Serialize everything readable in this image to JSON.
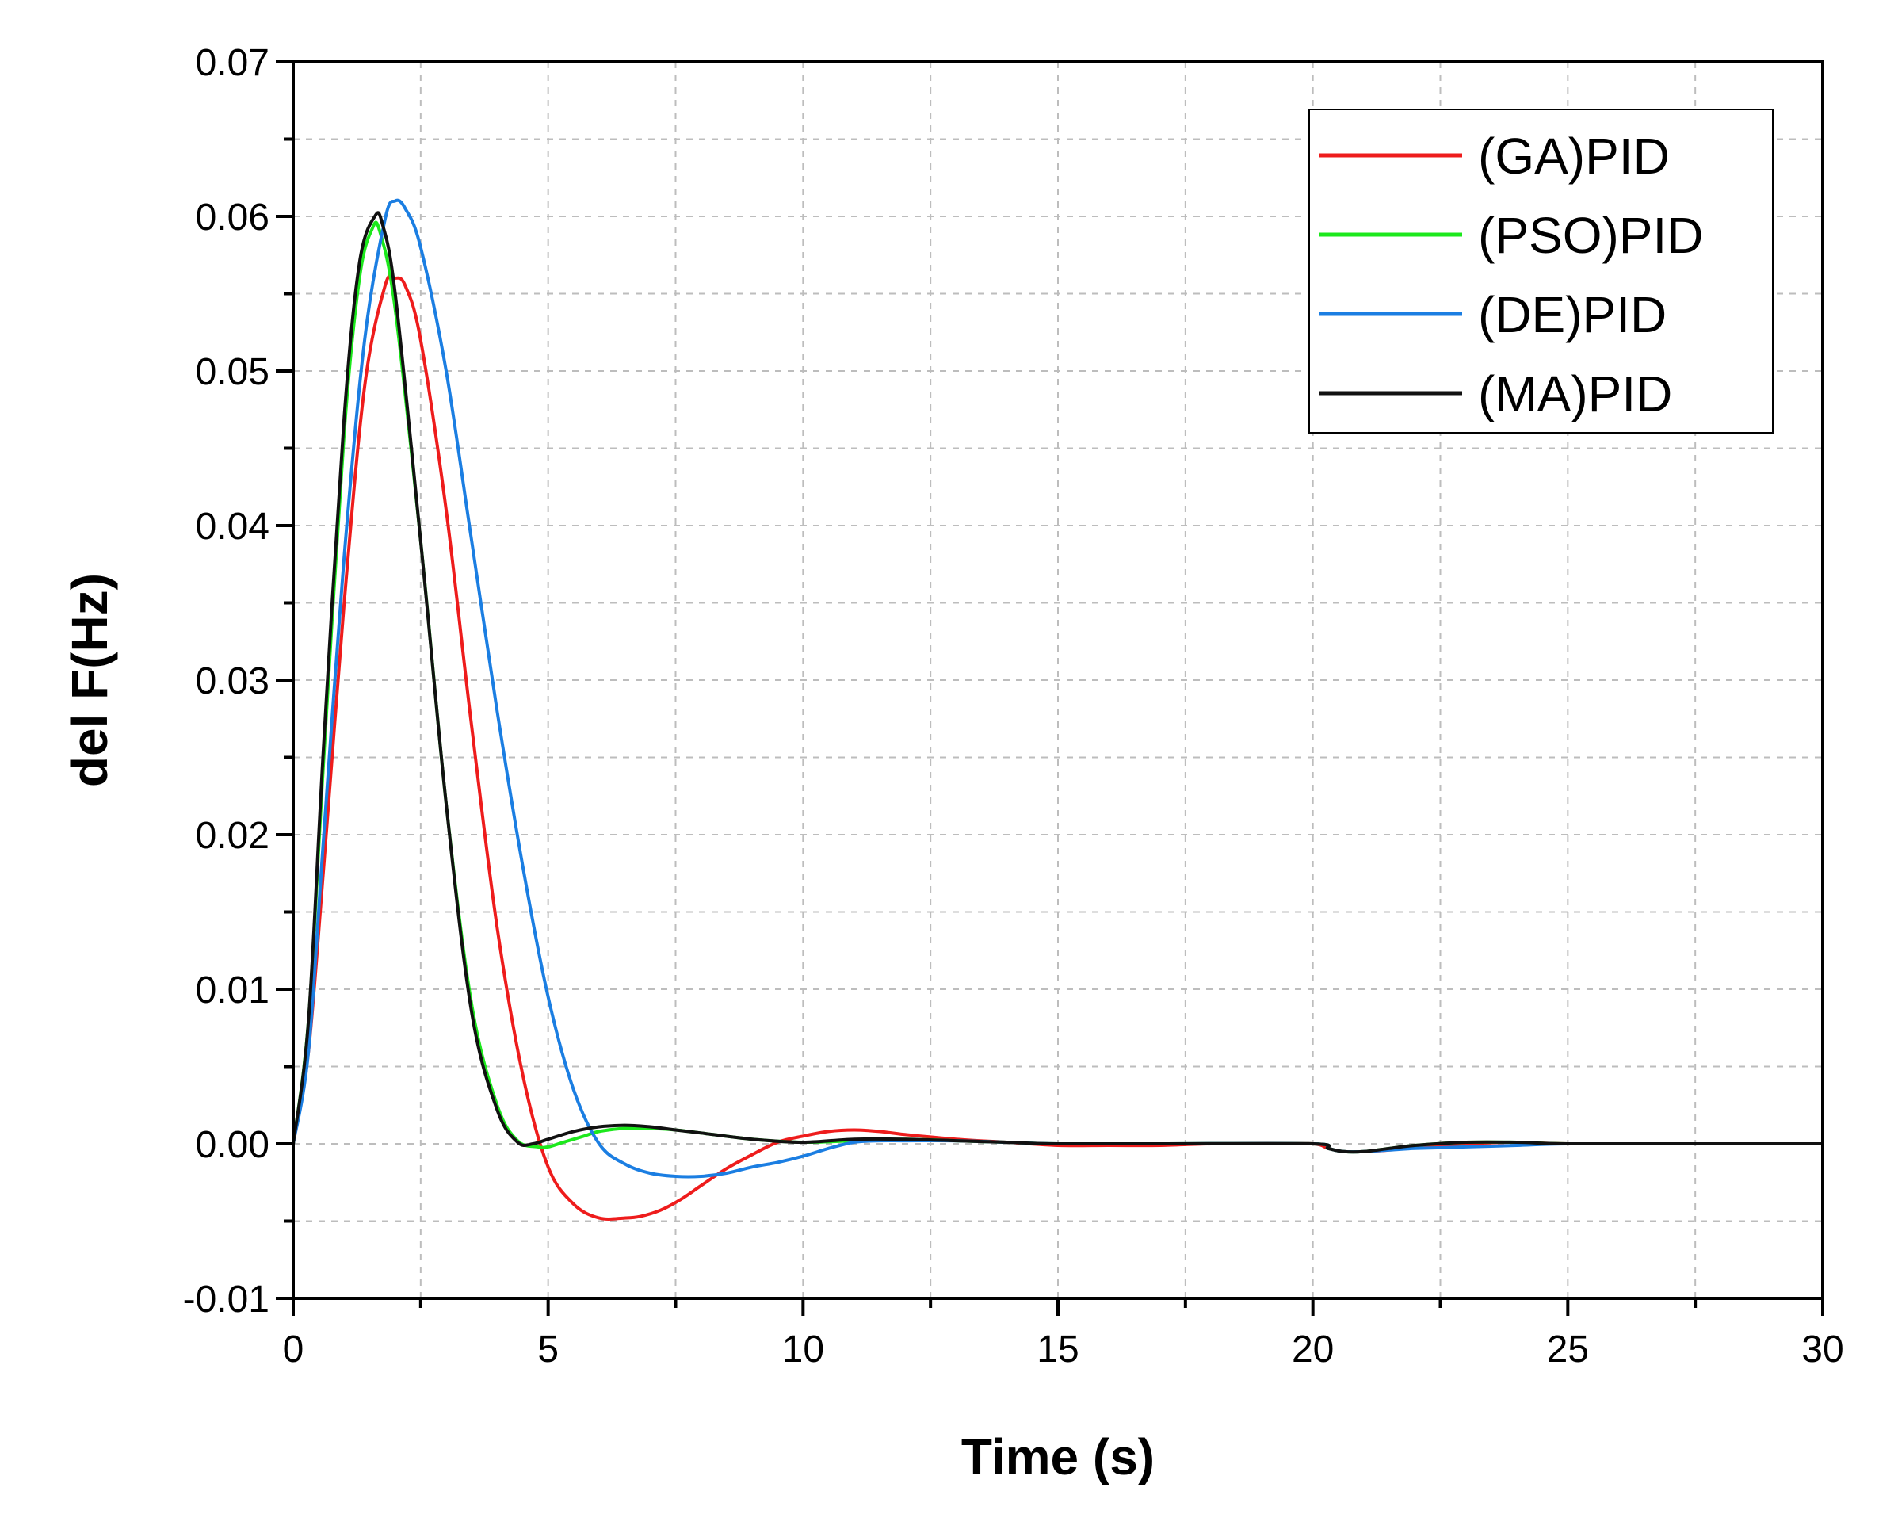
{
  "chart_data": {
    "type": "line",
    "title": "",
    "xlabel": "Time (s)",
    "ylabel": "del F(Hz)",
    "xlim": [
      0,
      30
    ],
    "ylim": [
      -0.01,
      0.07
    ],
    "xticks": [
      0,
      5,
      10,
      15,
      20,
      25,
      30
    ],
    "xtick_labels": [
      "0",
      "5",
      "10",
      "15",
      "20",
      "25",
      "30"
    ],
    "yticks": [
      -0.01,
      0,
      0.01,
      0.02,
      0.03,
      0.04,
      0.05,
      0.06,
      0.07
    ],
    "ytick_labels": [
      "-0.01",
      "0.00",
      "0.01",
      "0.02",
      "0.03",
      "0.04",
      "0.05",
      "0.06",
      "0.07"
    ],
    "grid": true,
    "legend_position": "top-right",
    "series": [
      {
        "name": "(GA)PID",
        "color": "#ee1c1c",
        "x": [
          0,
          0.3,
          0.6,
          1.0,
          1.4,
          1.8,
          2.0,
          2.2,
          2.5,
          3.0,
          3.5,
          4.0,
          4.5,
          5.0,
          5.5,
          6.0,
          6.5,
          6.8,
          7.2,
          7.6,
          8.0,
          8.5,
          9.0,
          9.5,
          10.0,
          10.5,
          11.0,
          11.5,
          12.0,
          13.0,
          14.0,
          15.0,
          16.0,
          17.0,
          18.0,
          19.0,
          20.0,
          20.3,
          20.6,
          21.0,
          21.5,
          22.0,
          23.0,
          24.0,
          25.0,
          27.0,
          30.0
        ],
        "y": [
          0,
          0.006,
          0.018,
          0.035,
          0.049,
          0.0555,
          0.056,
          0.0555,
          0.052,
          0.041,
          0.027,
          0.014,
          0.0045,
          -0.0015,
          -0.0039,
          -0.0048,
          -0.0048,
          -0.0047,
          -0.0043,
          -0.0036,
          -0.0027,
          -0.0016,
          -0.0007,
          0.0001,
          0.0005,
          0.0008,
          0.0009,
          0.0008,
          0.0006,
          0.0003,
          0.0001,
          -0.0001,
          -0.0001,
          -0.0001,
          0,
          0,
          0,
          -0.0003,
          -0.0005,
          -0.0005,
          -0.0004,
          -0.0002,
          0,
          0.0001,
          0,
          0,
          0
        ]
      },
      {
        "name": "(PSO)PID",
        "color": "#1ce81c",
        "x": [
          0,
          0.3,
          0.6,
          1.0,
          1.3,
          1.55,
          1.7,
          2.0,
          2.5,
          3.0,
          3.5,
          4.0,
          4.4,
          4.8,
          5.0,
          5.3,
          5.7,
          6.0,
          6.5,
          7.0,
          7.5,
          8.0,
          9.0,
          10.0,
          11.0,
          12.0,
          13.0,
          14.0,
          15.0,
          17.0,
          20.0,
          20.3,
          20.6,
          21.0,
          21.5,
          22.0,
          23.0,
          24.0,
          25.0,
          27.0,
          30.0
        ],
        "y": [
          0,
          0.008,
          0.025,
          0.046,
          0.056,
          0.0592,
          0.059,
          0.054,
          0.039,
          0.022,
          0.009,
          0.0025,
          0.0002,
          -0.0002,
          -0.0002,
          0.0001,
          0.0005,
          0.0008,
          0.001,
          0.001,
          0.0009,
          0.0007,
          0.0003,
          0.0001,
          0.0002,
          0.0003,
          0.0002,
          0.0001,
          0,
          0,
          0,
          -0.0003,
          -0.0005,
          -0.0005,
          -0.0003,
          -0.0001,
          0.0001,
          0.0001,
          0,
          0,
          0
        ]
      },
      {
        "name": "(DE)PID",
        "color": "#1b7ee2",
        "x": [
          0,
          0.3,
          0.6,
          1.0,
          1.4,
          1.8,
          2.0,
          2.2,
          2.5,
          3.0,
          3.5,
          4.0,
          4.5,
          5.0,
          5.5,
          6.0,
          6.5,
          7.0,
          7.5,
          8.0,
          8.5,
          9.0,
          9.5,
          10.0,
          10.5,
          11.0,
          11.5,
          12.0,
          13.0,
          14.0,
          15.0,
          17.0,
          20.0,
          20.3,
          20.6,
          21.0,
          21.5,
          22.0,
          23.0,
          24.0,
          25.0,
          27.0,
          30.0
        ],
        "y": [
          0,
          0.006,
          0.02,
          0.038,
          0.052,
          0.0598,
          0.061,
          0.0605,
          0.058,
          0.05,
          0.039,
          0.028,
          0.018,
          0.0095,
          0.0035,
          0,
          -0.0013,
          -0.0019,
          -0.0021,
          -0.0021,
          -0.0019,
          -0.0015,
          -0.0012,
          -0.0008,
          -0.0003,
          0.0001,
          0.0002,
          0.0002,
          0.0002,
          0.0001,
          0,
          0,
          0,
          -0.0003,
          -0.0005,
          -0.0005,
          -0.0004,
          -0.0003,
          -0.0002,
          -0.0001,
          0,
          0,
          0
        ]
      },
      {
        "name": "(MA)PID",
        "color": "#111111",
        "x": [
          0,
          0.3,
          0.6,
          1.0,
          1.3,
          1.6,
          1.75,
          2.0,
          2.5,
          3.0,
          3.5,
          4.0,
          4.4,
          4.7,
          5.0,
          5.5,
          6.0,
          6.5,
          7.0,
          7.5,
          8.0,
          9.0,
          10.0,
          11.0,
          12.0,
          13.0,
          14.0,
          15.0,
          17.0,
          20.0,
          20.3,
          20.6,
          21.0,
          21.5,
          22.0,
          23.0,
          24.0,
          25.0,
          27.0,
          30.0
        ],
        "y": [
          0,
          0.008,
          0.026,
          0.047,
          0.057,
          0.06,
          0.0595,
          0.055,
          0.039,
          0.022,
          0.0085,
          0.0022,
          0.0001,
          0,
          0.0003,
          0.0008,
          0.0011,
          0.0012,
          0.0011,
          0.0009,
          0.0007,
          0.0003,
          0.0001,
          0.0003,
          0.0003,
          0.0002,
          0.0001,
          0,
          0,
          0,
          -0.0003,
          -0.0005,
          -0.0005,
          -0.0003,
          -0.0001,
          0.0001,
          0.0001,
          0,
          0,
          0
        ]
      }
    ]
  }
}
